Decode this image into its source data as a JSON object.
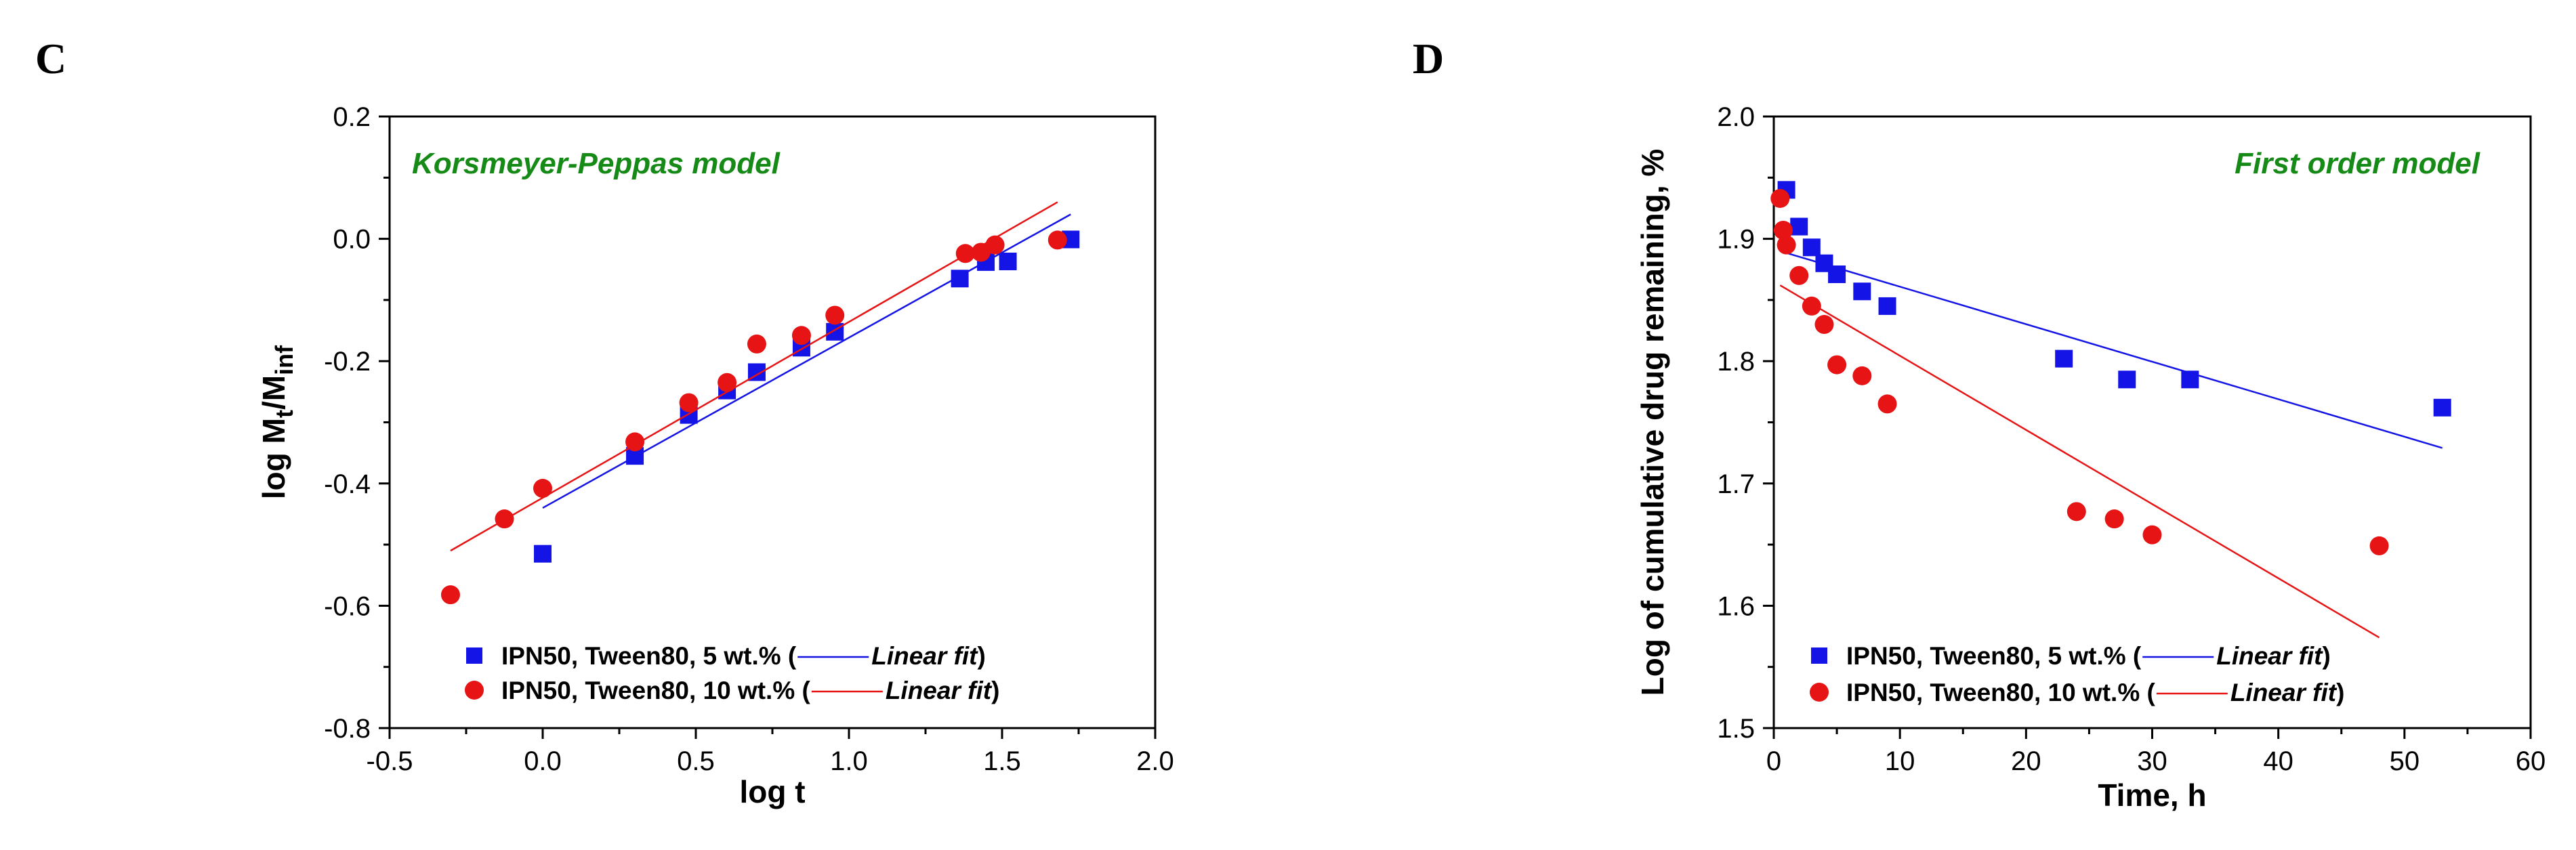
{
  "chart_data": [
    {
      "panel": "C",
      "type": "scatter",
      "title": "Korsmeyer-Peppas model",
      "xlabel": "log t",
      "ylabel": {
        "main": "log M",
        "sub1": "t",
        "mid": "/M",
        "sub2": "inf"
      },
      "xlim": [
        -0.5,
        2.0
      ],
      "ylim": [
        -0.8,
        0.2
      ],
      "xticks": [
        "-0.5",
        "0.0",
        "0.5",
        "1.0",
        "1.5",
        "2.0"
      ],
      "yticks": [
        "-0.8",
        "-0.6",
        "-0.4",
        "-0.2",
        "0.0",
        "0.2"
      ],
      "xtick_values": [
        -0.5,
        0.0,
        0.5,
        1.0,
        1.5,
        2.0
      ],
      "ytick_values": [
        -0.8,
        -0.6,
        -0.4,
        -0.2,
        0.0,
        0.2
      ],
      "series": [
        {
          "name": "IPN50, Tween80, 5 wt.%",
          "marker": "square",
          "color": "#1414e6",
          "x": [
            0.0,
            0.301,
            0.477,
            0.602,
            0.699,
            0.845,
            0.954,
            1.362,
            1.447,
            1.519,
            1.724
          ],
          "y": [
            -0.515,
            -0.355,
            -0.288,
            -0.248,
            -0.218,
            -0.178,
            -0.152,
            -0.065,
            -0.038,
            -0.037,
            -0.001
          ],
          "fit": {
            "label": "Linear fit",
            "x": [
              0.0,
              1.724
            ],
            "y": [
              -0.44,
              0.04
            ]
          }
        },
        {
          "name": "IPN50, Tween80, 10 wt.%",
          "marker": "circle",
          "color": "#e61414",
          "x": [
            -0.301,
            -0.125,
            0.0,
            0.301,
            0.477,
            0.602,
            0.699,
            0.845,
            0.954,
            1.38,
            1.431,
            1.477,
            1.681
          ],
          "y": [
            -0.582,
            -0.458,
            -0.408,
            -0.332,
            -0.268,
            -0.235,
            -0.172,
            -0.158,
            -0.125,
            -0.024,
            -0.022,
            -0.01,
            -0.002
          ],
          "fit": {
            "label": "Linear fit",
            "x": [
              -0.301,
              1.681
            ],
            "y": [
              -0.51,
              0.06
            ]
          }
        }
      ],
      "legend_position": "bottom-left"
    },
    {
      "panel": "D",
      "type": "scatter",
      "title": "First order model",
      "xlabel": "Time, h",
      "ylabel": "Log of cumulative drug remaining, %",
      "xlim": [
        0,
        60
      ],
      "ylim": [
        1.5,
        2.0
      ],
      "xticks": [
        "0",
        "10",
        "20",
        "30",
        "40",
        "50",
        "60"
      ],
      "yticks": [
        "1.5",
        "1.6",
        "1.7",
        "1.8",
        "1.9",
        "2.0"
      ],
      "xtick_values": [
        0,
        10,
        20,
        30,
        40,
        50,
        60
      ],
      "ytick_values": [
        1.5,
        1.6,
        1.7,
        1.8,
        1.9,
        2.0
      ],
      "series": [
        {
          "name": "IPN50, Tween80, 5 wt.%",
          "marker": "square",
          "color": "#1414e6",
          "x": [
            1,
            2,
            3,
            4,
            5,
            7,
            9,
            23,
            28,
            33,
            53
          ],
          "y": [
            1.94,
            1.91,
            1.893,
            1.88,
            1.871,
            1.857,
            1.845,
            1.802,
            1.785,
            1.785,
            1.762
          ],
          "fit": {
            "label": "Linear fit",
            "x": [
              0.5,
              53
            ],
            "y": [
              1.89,
              1.729
            ]
          }
        },
        {
          "name": "IPN50, Tween80, 10 wt.%",
          "marker": "circle",
          "color": "#e61414",
          "x": [
            0.5,
            0.75,
            1,
            2,
            3,
            4,
            5,
            7,
            9,
            24,
            27,
            30,
            48
          ],
          "y": [
            1.933,
            1.907,
            1.895,
            1.87,
            1.845,
            1.83,
            1.797,
            1.788,
            1.765,
            1.677,
            1.671,
            1.658,
            1.649
          ],
          "fit": {
            "label": "Linear fit",
            "x": [
              0.5,
              48
            ],
            "y": [
              1.862,
              1.574
            ]
          }
        }
      ],
      "legend_position": "bottom-left"
    }
  ]
}
